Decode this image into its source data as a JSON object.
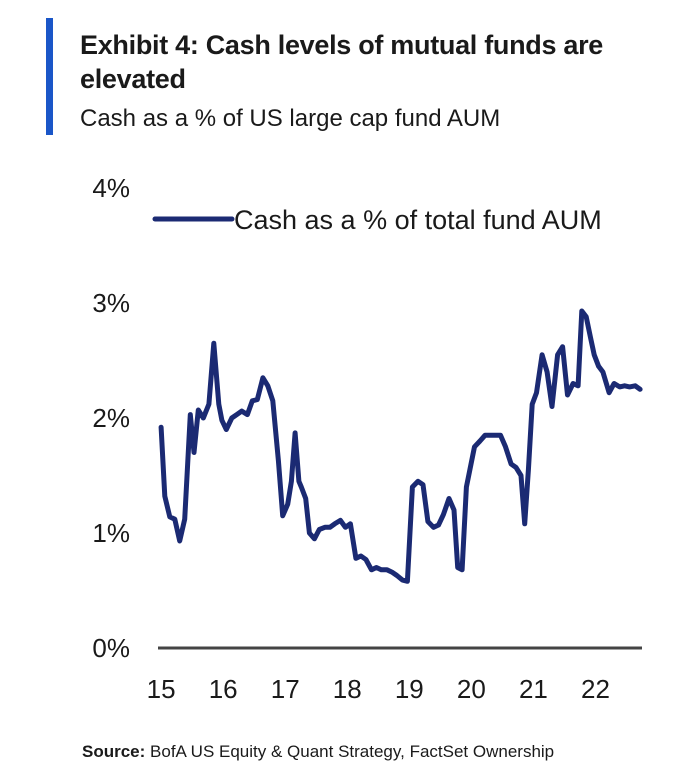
{
  "header": {
    "title": "Exhibit 4: Cash levels of mutual funds are elevated",
    "subtitle": "Cash as a % of US large cap fund AUM"
  },
  "colors": {
    "accent": "#1a56c8",
    "series": "#1b2a73",
    "axis": "#444444"
  },
  "chart_data": {
    "type": "line",
    "title": "Exhibit 4: Cash levels of mutual funds are elevated",
    "subtitle": "Cash as a % of US large cap fund AUM",
    "xlabel": "",
    "ylabel": "",
    "xlim": [
      14.95,
      22.75
    ],
    "ylim": [
      0,
      4
    ],
    "x_ticks": [
      15,
      16,
      17,
      18,
      19,
      20,
      21,
      22
    ],
    "x_tick_labels": [
      "15",
      "16",
      "17",
      "18",
      "19",
      "20",
      "21",
      "22"
    ],
    "y_ticks": [
      0,
      1,
      2,
      3,
      4
    ],
    "y_tick_labels": [
      "0%",
      "1%",
      "2%",
      "3%",
      "4%"
    ],
    "grid": false,
    "legend": {
      "position": "top-left",
      "entries": [
        "Cash as a % of total fund AUM"
      ]
    },
    "series": [
      {
        "name": "Cash as a % of total fund AUM",
        "x": [
          15.0,
          15.06,
          15.14,
          15.22,
          15.3,
          15.38,
          15.47,
          15.53,
          15.6,
          15.68,
          15.77,
          15.85,
          15.93,
          15.98,
          16.05,
          16.14,
          16.22,
          16.3,
          16.39,
          16.47,
          16.55,
          16.64,
          16.72,
          16.8,
          16.89,
          16.96,
          17.04,
          17.1,
          17.16,
          17.22,
          17.26,
          17.33,
          17.39,
          17.47,
          17.55,
          17.64,
          17.72,
          17.8,
          17.89,
          17.97,
          18.05,
          18.14,
          18.22,
          18.3,
          18.39,
          18.47,
          18.55,
          18.64,
          18.72,
          18.8,
          18.89,
          18.97,
          19.05,
          19.14,
          19.22,
          19.3,
          19.39,
          19.47,
          19.55,
          19.64,
          19.72,
          19.78,
          19.85,
          19.92,
          19.98,
          20.05,
          20.14,
          20.22,
          20.3,
          20.39,
          20.47,
          20.55,
          20.64,
          20.72,
          20.8,
          20.86,
          20.92,
          20.98,
          21.05,
          21.14,
          21.22,
          21.3,
          21.39,
          21.47,
          21.55,
          21.64,
          21.72,
          21.78,
          21.85,
          21.92,
          21.98,
          22.05,
          22.12,
          22.22,
          22.3,
          22.39,
          22.47,
          22.55,
          22.64,
          22.72
        ],
        "values": [
          1.92,
          1.32,
          1.14,
          1.12,
          0.93,
          1.12,
          2.03,
          1.7,
          2.07,
          2.0,
          2.12,
          2.65,
          2.12,
          1.98,
          1.9,
          2.0,
          2.03,
          2.06,
          2.03,
          2.15,
          2.16,
          2.35,
          2.28,
          2.15,
          1.63,
          1.15,
          1.25,
          1.45,
          1.87,
          1.45,
          1.4,
          1.3,
          1.0,
          0.95,
          1.03,
          1.05,
          1.05,
          1.08,
          1.11,
          1.05,
          1.08,
          0.78,
          0.8,
          0.77,
          0.68,
          0.7,
          0.68,
          0.68,
          0.66,
          0.63,
          0.59,
          0.58,
          1.4,
          1.45,
          1.42,
          1.1,
          1.05,
          1.07,
          1.16,
          1.3,
          1.2,
          0.7,
          0.68,
          1.4,
          1.56,
          1.75,
          1.8,
          1.85,
          1.85,
          1.85,
          1.85,
          1.75,
          1.6,
          1.57,
          1.5,
          1.08,
          1.55,
          2.12,
          2.22,
          2.55,
          2.4,
          2.1,
          2.55,
          2.62,
          2.2,
          2.3,
          2.28,
          2.93,
          2.88,
          2.7,
          2.55,
          2.45,
          2.4,
          2.22,
          2.3,
          2.27,
          2.28,
          2.27,
          2.28,
          2.25
        ]
      }
    ]
  },
  "source": {
    "label": "Source:",
    "text": "BofA US Equity & Quant Strategy, FactSet Ownership"
  }
}
